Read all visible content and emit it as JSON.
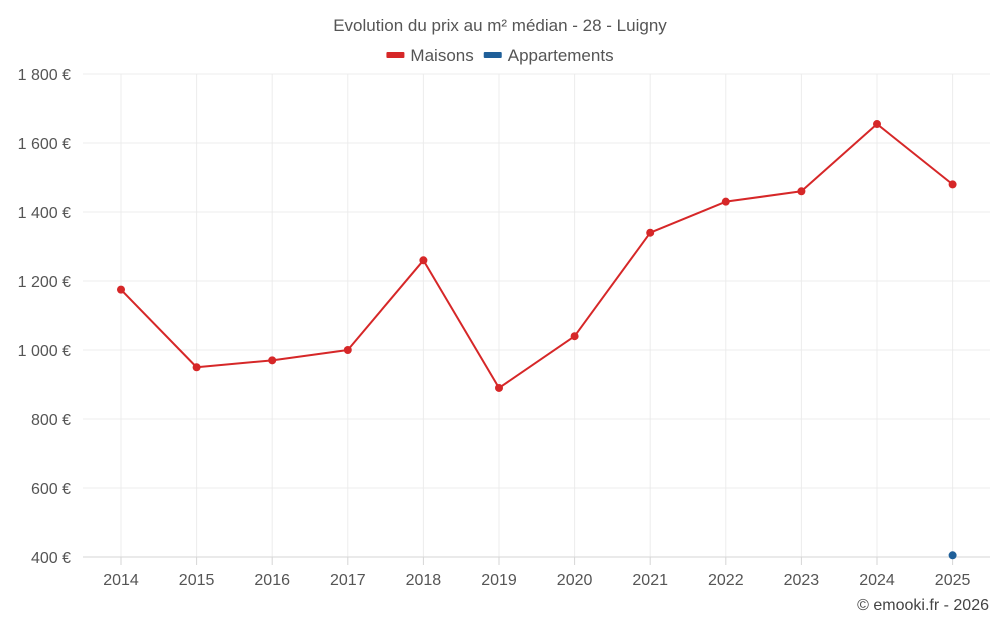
{
  "chart_data": {
    "type": "line",
    "title": "Evolution du prix au m² médian - 28 - Luigny",
    "xlabel": "",
    "ylabel": "",
    "categories": [
      "2014",
      "2015",
      "2016",
      "2017",
      "2018",
      "2019",
      "2020",
      "2021",
      "2022",
      "2023",
      "2024",
      "2025"
    ],
    "ylim": [
      400,
      1800
    ],
    "yticks": [
      400,
      600,
      800,
      1000,
      1200,
      1400,
      1600,
      1800
    ],
    "ytick_labels": [
      "400 €",
      "600 €",
      "800 €",
      "1 000 €",
      "1 200 €",
      "1 400 €",
      "1 600 €",
      "1 800 €"
    ],
    "grid": true,
    "legend_position": "top-center",
    "series": [
      {
        "name": "Maisons",
        "color": "#d62728",
        "values": [
          1175,
          950,
          970,
          1000,
          1260,
          890,
          1040,
          1340,
          1430,
          1460,
          1655,
          1480
        ]
      },
      {
        "name": "Appartements",
        "color": "#1f5f99",
        "values": [
          null,
          null,
          null,
          null,
          null,
          null,
          null,
          null,
          null,
          null,
          null,
          405
        ]
      }
    ]
  },
  "credit": "© emooki.fr - 2026"
}
